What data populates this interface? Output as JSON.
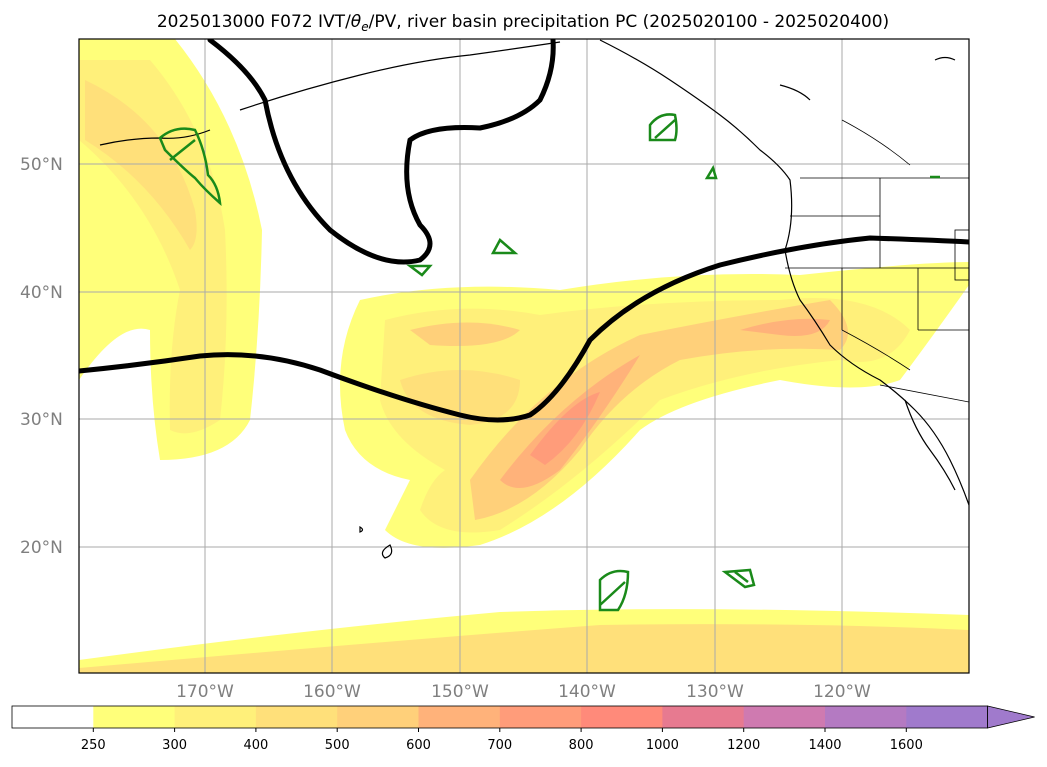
{
  "title": {
    "prefix": "2025013000 F072 IVT/",
    "theta": "θ",
    "theta_sub": "e",
    "suffix": "/PV, river basin precipitation PC (2025020100 - 2025020400)"
  },
  "map": {
    "lat_labels": [
      "50°N",
      "40°N",
      "30°N",
      "20°N"
    ],
    "lon_labels": [
      "170°W",
      "160°W",
      "150°W",
      "140°W",
      "130°W",
      "120°W"
    ],
    "gridline_color": "#aaaaaa",
    "coastline_color": "#000000",
    "pv_contour_color": "#000000",
    "basin_outline_color": "#1a8a1a"
  },
  "colorbar": {
    "ticks": [
      "250",
      "300",
      "400",
      "500",
      "600",
      "700",
      "800",
      "1000",
      "1200",
      "1400",
      "1600"
    ],
    "colors": [
      "#ffffff",
      "#ffff7a",
      "#fff07a",
      "#ffe07a",
      "#ffd07a",
      "#ffb27a",
      "#ff9c7a",
      "#ff8a7a",
      "#e77a90",
      "#cf7ab0",
      "#b47ac2",
      "#a07acc"
    ],
    "extend": "max"
  },
  "legend_icon": "colorbar-extend-arrow"
}
